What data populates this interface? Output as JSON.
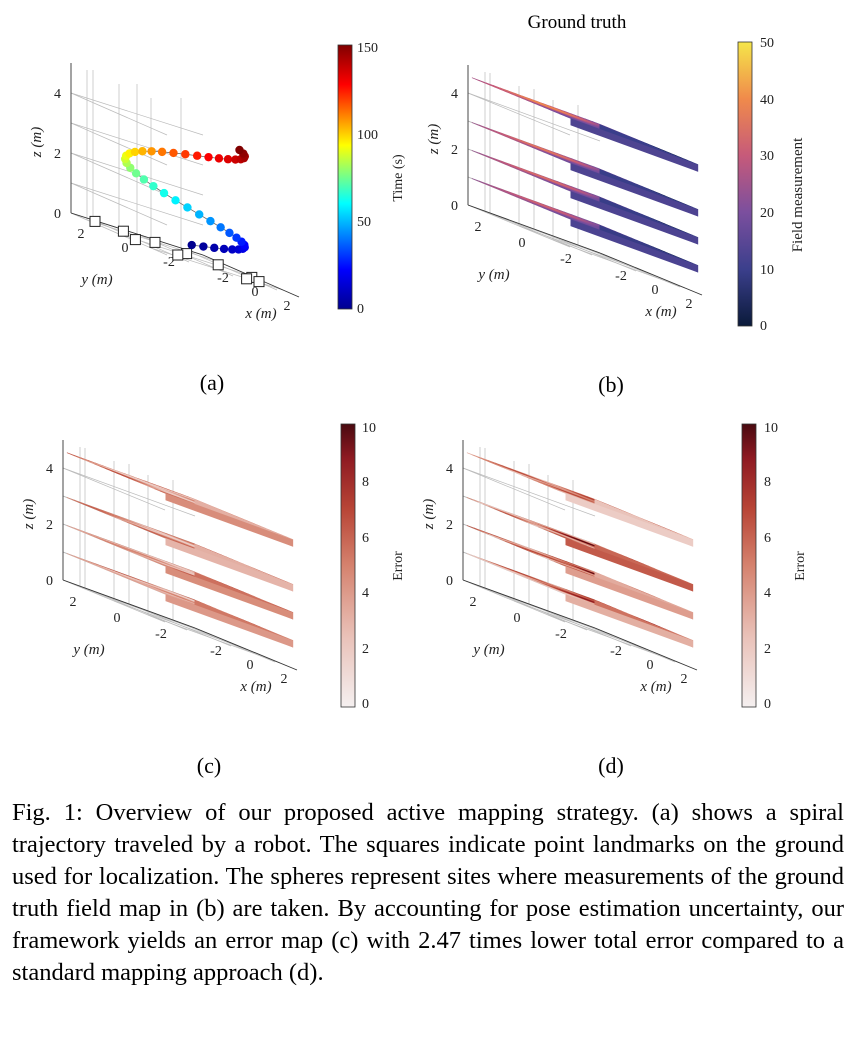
{
  "panels": {
    "a": {
      "label": "(a)",
      "colorbar": {
        "title": "Time (s)",
        "ticks": [
          "0",
          "50",
          "100",
          "150"
        ],
        "min": 0,
        "max": 150
      },
      "axes": {
        "x": "x (m)",
        "y": "y (m)",
        "z": "z (m)"
      },
      "ticks": {
        "x": [
          "-2",
          "0",
          "2"
        ],
        "y": [
          "-2",
          "0",
          "2"
        ],
        "z": [
          "0",
          "2",
          "4"
        ]
      }
    },
    "b": {
      "label": "(b)",
      "title": "Ground truth",
      "colorbar": {
        "title": "Field measurement",
        "ticks": [
          "0",
          "10",
          "20",
          "30",
          "40",
          "50"
        ],
        "min": 0,
        "max": 50
      },
      "axes": {
        "x": "x (m)",
        "y": "y (m)",
        "z": "z (m)"
      },
      "ticks": {
        "x": [
          "-2",
          "0",
          "2"
        ],
        "y": [
          "-2",
          "0",
          "2"
        ],
        "z": [
          "0",
          "2",
          "4"
        ]
      }
    },
    "c": {
      "label": "(c)",
      "colorbar": {
        "title": "Error",
        "ticks": [
          "0",
          "2",
          "4",
          "6",
          "8",
          "10"
        ],
        "min": 0,
        "max": 10
      },
      "axes": {
        "x": "x (m)",
        "y": "y (m)",
        "z": "z (m)"
      },
      "ticks": {
        "x": [
          "-2",
          "0",
          "2"
        ],
        "y": [
          "-2",
          "0",
          "2"
        ],
        "z": [
          "0",
          "2",
          "4"
        ]
      }
    },
    "d": {
      "label": "(d)",
      "colorbar": {
        "title": "Error",
        "ticks": [
          "0",
          "2",
          "4",
          "6",
          "8",
          "10"
        ],
        "min": 0,
        "max": 10
      },
      "axes": {
        "x": "x (m)",
        "y": "y (m)",
        "z": "z (m)"
      },
      "ticks": {
        "x": [
          "-2",
          "0",
          "2"
        ],
        "y": [
          "-2",
          "0",
          "2"
        ],
        "z": [
          "0",
          "2",
          "4"
        ]
      }
    }
  },
  "colors": {
    "jet": [
      "#00008f",
      "#0000ff",
      "#00ffff",
      "#ffff00",
      "#ff0000",
      "#800000"
    ],
    "plasma": [
      "#0a1a3a",
      "#3b3f8c",
      "#7b4f9e",
      "#c65a7a",
      "#f08a4b",
      "#f5e64a"
    ],
    "error": [
      "#f5f0f0",
      "#e9c1b8",
      "#d5826e",
      "#b84536",
      "#8e1a22",
      "#4a0a10"
    ]
  },
  "caption": "Fig. 1: Overview of our proposed active mapping strategy. (a) shows a spiral trajectory traveled by a robot. The squares indicate point landmarks on the ground used for localization. The spheres represent sites where measurements of the ground truth field map in (b) are taken. By accounting for pose estimation uncertainty, our framework yields an error map (c) with 2.47 times lower total error compared to a standard mapping approach (d)."
}
